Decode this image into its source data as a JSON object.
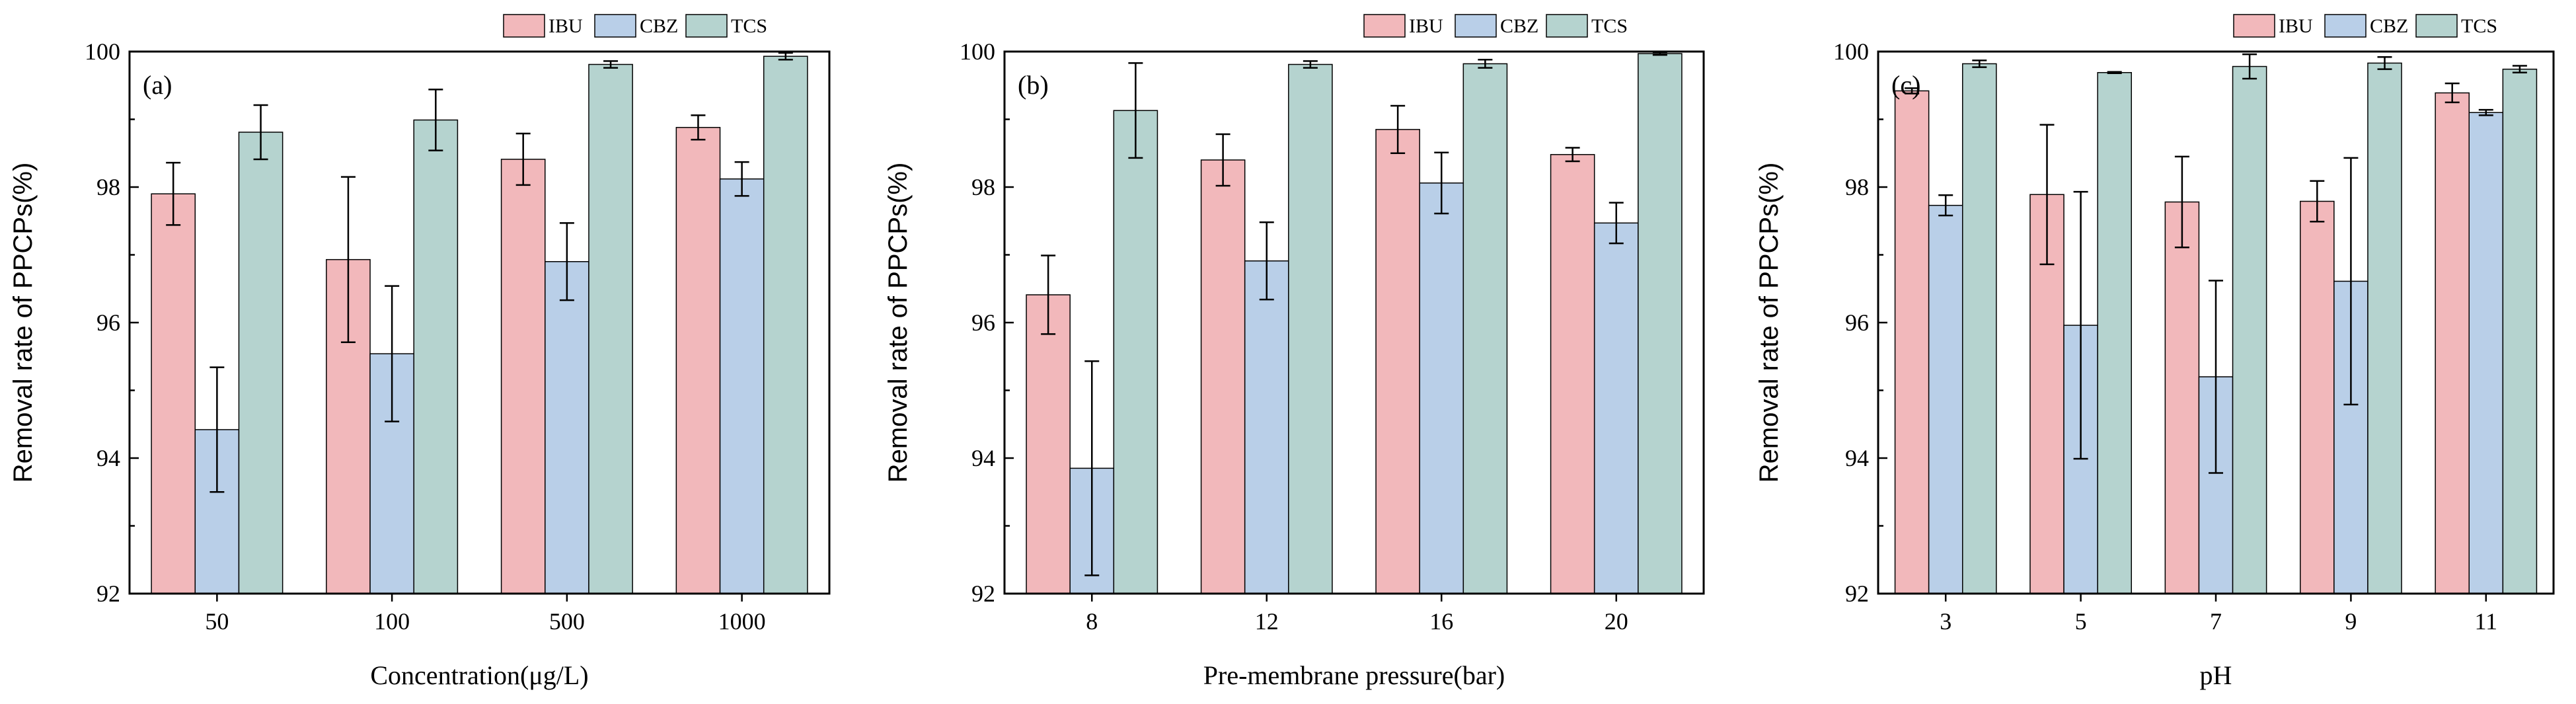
{
  "colors": {
    "IBU": "#f2b8bb",
    "CBZ": "#b9cfe8",
    "TCS": "#b5d3cf",
    "axis": "#000000"
  },
  "legend": [
    "IBU",
    "CBZ",
    "TCS"
  ],
  "chart_data": [
    {
      "type": "bar",
      "panel_label": "(a)",
      "xlabel": "Concentration(μg/L)",
      "ylabel": "Removal rate of PPCPs(%)",
      "ylim": [
        92,
        100
      ],
      "yticks": [
        92,
        94,
        96,
        98,
        100
      ],
      "legend_position": "top-right",
      "categories": [
        "50",
        "100",
        "500",
        "1000"
      ],
      "series": [
        {
          "name": "IBU",
          "values": [
            97.9,
            96.93,
            98.41,
            98.88
          ],
          "errors": [
            0.46,
            1.22,
            0.38,
            0.18
          ]
        },
        {
          "name": "CBZ",
          "values": [
            94.42,
            95.54,
            96.9,
            98.12
          ],
          "errors": [
            0.92,
            1.0,
            0.57,
            0.25
          ]
        },
        {
          "name": "TCS",
          "values": [
            98.81,
            98.99,
            99.81,
            99.93
          ],
          "errors": [
            0.4,
            0.45,
            0.05,
            0.05
          ]
        }
      ]
    },
    {
      "type": "bar",
      "panel_label": "(b)",
      "xlabel": "Pre-membrane pressure(bar)",
      "ylabel": "Removal rate of PPCPs(%)",
      "ylim": [
        92,
        100
      ],
      "yticks": [
        92,
        94,
        96,
        98,
        100
      ],
      "legend_position": "top-right",
      "categories": [
        "8",
        "12",
        "16",
        "20"
      ],
      "series": [
        {
          "name": "IBU",
          "values": [
            96.41,
            98.4,
            98.85,
            98.48
          ],
          "errors": [
            0.58,
            0.38,
            0.35,
            0.1
          ]
        },
        {
          "name": "CBZ",
          "values": [
            93.85,
            96.91,
            98.06,
            97.47
          ],
          "errors": [
            1.58,
            0.57,
            0.45,
            0.3
          ]
        },
        {
          "name": "TCS",
          "values": [
            99.13,
            99.81,
            99.82,
            99.97
          ],
          "errors": [
            0.7,
            0.05,
            0.06,
            0.02
          ]
        }
      ]
    },
    {
      "type": "bar",
      "panel_label": "(c)",
      "xlabel": "pH",
      "ylabel": "Removal rate of PPCPs(%)",
      "ylim": [
        92,
        100
      ],
      "yticks": [
        92,
        94,
        96,
        98,
        100
      ],
      "legend_position": "top-right",
      "categories": [
        "3",
        "5",
        "7",
        "9",
        "11"
      ],
      "series": [
        {
          "name": "IBU",
          "values": [
            99.42,
            97.89,
            97.78,
            97.79,
            99.39
          ],
          "errors": [
            0.04,
            1.03,
            0.67,
            0.3,
            0.14
          ]
        },
        {
          "name": "CBZ",
          "values": [
            97.73,
            95.96,
            95.2,
            96.61,
            99.1
          ],
          "errors": [
            0.15,
            1.97,
            1.42,
            1.82,
            0.04
          ]
        },
        {
          "name": "TCS",
          "values": [
            99.82,
            99.69,
            99.78,
            99.83,
            99.74
          ],
          "errors": [
            0.05,
            0.01,
            0.18,
            0.09,
            0.05
          ]
        }
      ]
    }
  ]
}
